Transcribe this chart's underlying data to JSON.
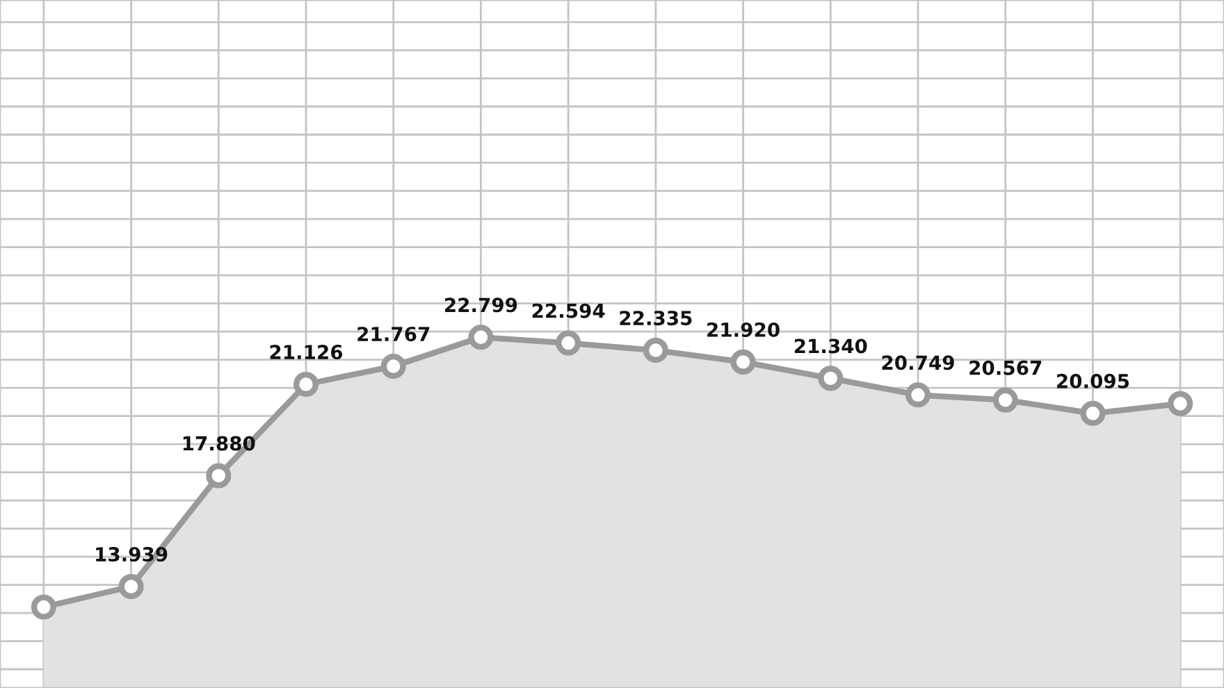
{
  "chart_data": {
    "type": "area",
    "categories": [
      null,
      null,
      null,
      null,
      null,
      null,
      null,
      null,
      null,
      null,
      null,
      null,
      null,
      null
    ],
    "series": [
      {
        "color": "#9a9a9a",
        "values": [
          13.21,
          13.939,
          17.88,
          21.126,
          21.767,
          22.799,
          22.594,
          22.335,
          21.92,
          21.34,
          20.749,
          20.567,
          20.095,
          20.44
        ],
        "value_labels": [
          null,
          "13.939",
          "17.880",
          "21.126",
          "21.767",
          "22.799",
          "22.594",
          "22.335",
          "21.920",
          "21.340",
          "20.749",
          "20.567",
          "20.095",
          null
        ]
      }
    ],
    "tick_labels": false,
    "grid": true,
    "marker": "circle"
  }
}
